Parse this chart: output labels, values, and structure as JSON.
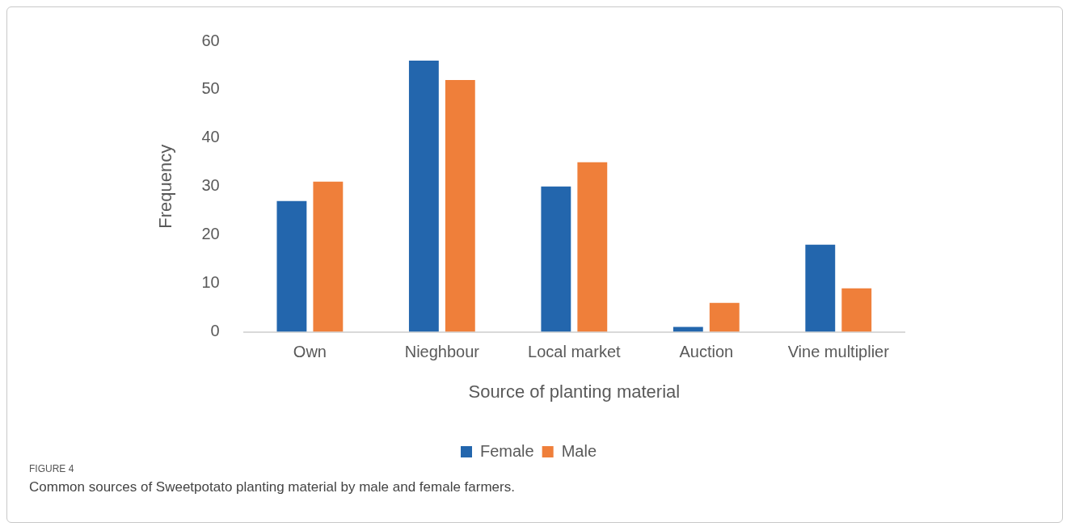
{
  "chart_data": {
    "type": "bar",
    "categories": [
      "Own",
      "Nieghbour",
      "Local market",
      "Auction",
      "Vine multiplier"
    ],
    "series": [
      {
        "name": "Female",
        "color": "#2366ad",
        "values": [
          27,
          56,
          30,
          1,
          18
        ]
      },
      {
        "name": "Male",
        "color": "#ef7f3a",
        "values": [
          31,
          52,
          35,
          6,
          9
        ]
      }
    ],
    "xlabel": "Source of planting material",
    "ylabel": "Frequency",
    "ylim": [
      0,
      60
    ],
    "yticks": [
      0,
      10,
      20,
      30,
      40,
      50,
      60
    ],
    "grid": false,
    "legend": "bottom",
    "annotations": [
      "FIGURE 4",
      "Common sources of Sweetpotato planting material by male and female farmers."
    ]
  }
}
